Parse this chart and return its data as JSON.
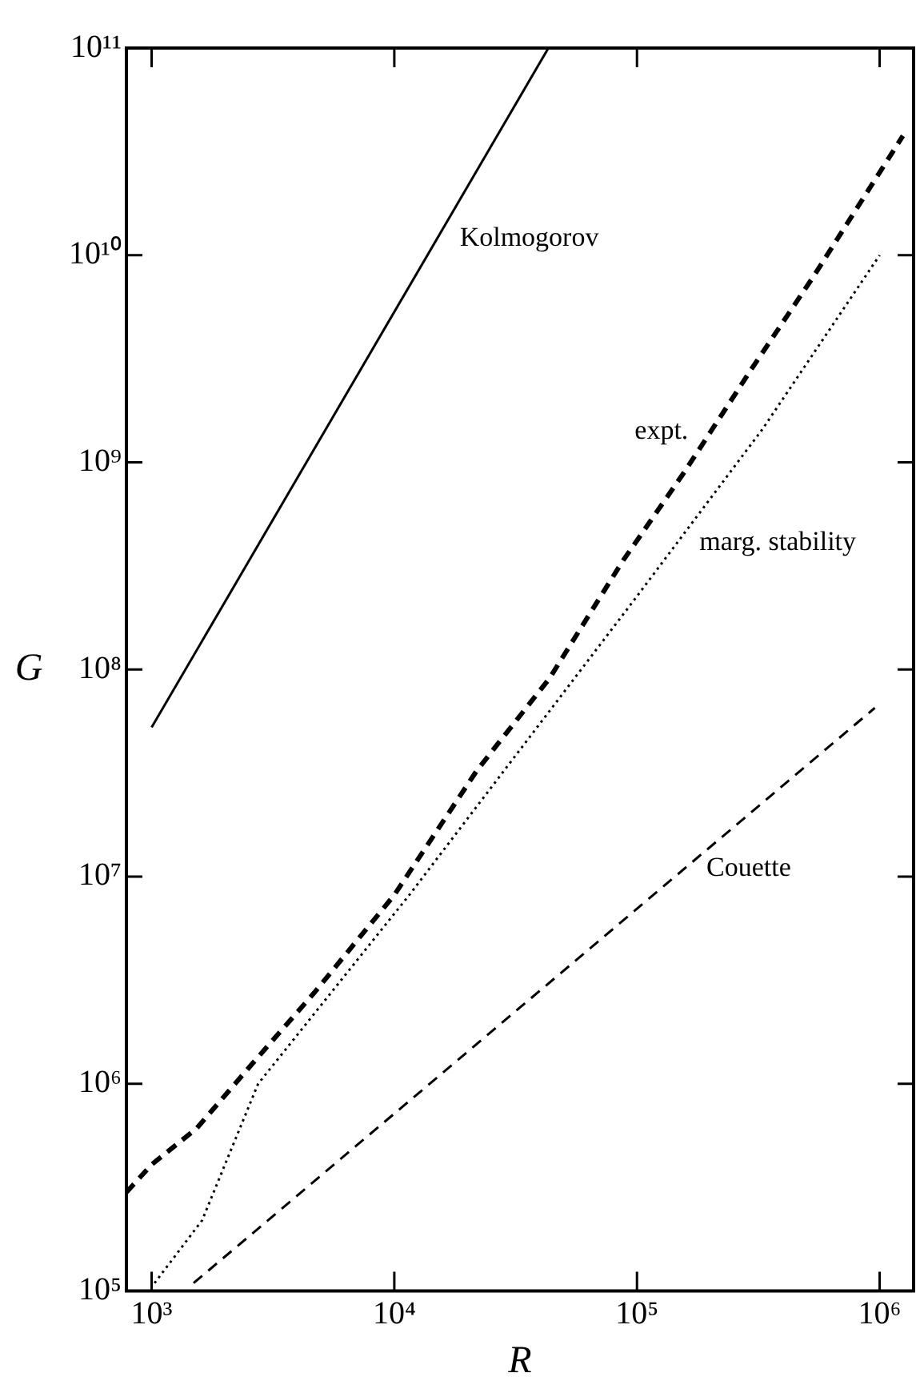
{
  "chart_data": {
    "type": "line",
    "xlabel": "R",
    "ylabel": "G",
    "log": "xy",
    "grid": false,
    "legend": false,
    "marker": "none",
    "xlim": [
      787,
      1380000
    ],
    "ylim": [
      100000,
      100000000000
    ],
    "xticks": [
      {
        "value": 1000,
        "label": "10³"
      },
      {
        "value": 10000,
        "label": "10⁴"
      },
      {
        "value": 100000,
        "label": "10⁵"
      },
      {
        "value": 1000000,
        "label": "10⁶"
      }
    ],
    "yticks": [
      {
        "value": 100000,
        "label": "10⁵"
      },
      {
        "value": 1000000,
        "label": "10⁶"
      },
      {
        "value": 10000000,
        "label": "10⁷"
      },
      {
        "value": 100000000,
        "label": "10⁸"
      },
      {
        "value": 1000000000,
        "label": "10⁹"
      },
      {
        "value": 10000000000,
        "label": "10¹⁰"
      },
      {
        "value": 100000000000,
        "label": "10¹¹"
      }
    ],
    "series": [
      {
        "name": "Kolmogorov",
        "color": "#000000",
        "line_style": "solid",
        "x": [
          1000,
          43150
        ],
        "values": [
          52500000,
          100000000000
        ]
      },
      {
        "name": "expt.",
        "color": "#000000",
        "line_style": "dashed",
        "x": [
          787,
          1000,
          1531,
          2606,
          4677,
          10000,
          21880,
          43650,
          87100,
          156700,
          296500,
          532100,
          1247000
        ],
        "values": [
          299000,
          407000,
          608000,
          1253000,
          2748000,
          8150000,
          32500000,
          90800000,
          332000000,
          897000000,
          2820000000,
          7850000000,
          37700000000
        ]
      },
      {
        "name": "marg. stability",
        "color": "#000000",
        "line_style": "dotted",
        "x": [
          1028,
          1614,
          2748,
          11530,
          99540,
          329600,
          1000000
        ],
        "values": [
          109000,
          219000,
          1000000,
          8150000,
          224000000,
          1450000000,
          10000000000
        ]
      },
      {
        "name": "Couette",
        "color": "#000000",
        "line_style": "dashed",
        "x": [
          1489,
          955000
        ],
        "values": [
          109000,
          65200000
        ]
      }
    ]
  }
}
